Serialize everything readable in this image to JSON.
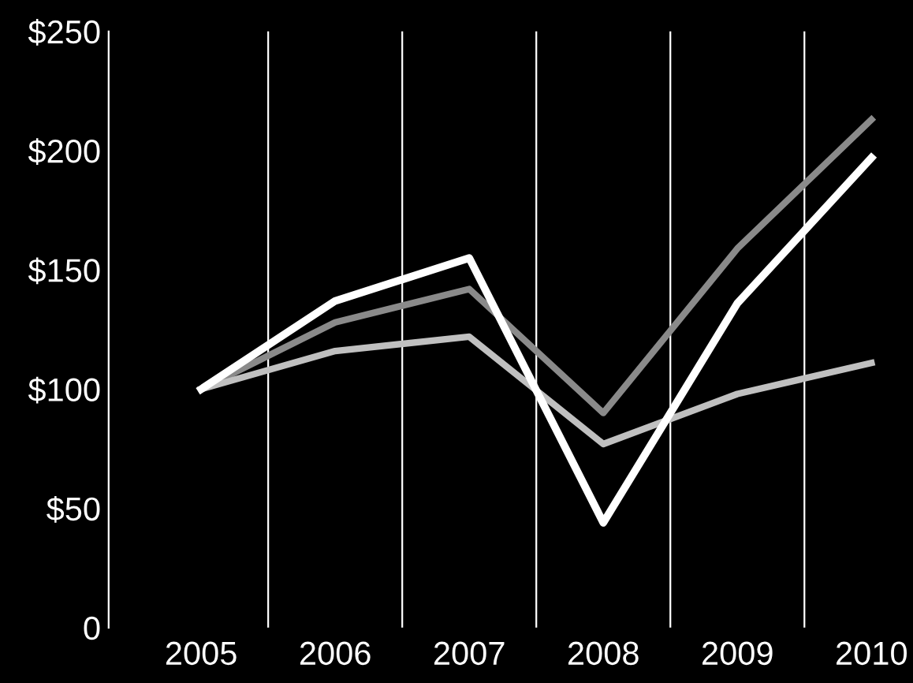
{
  "chart_data": {
    "type": "line",
    "categories": [
      "2005",
      "2006",
      "2007",
      "2008",
      "2009",
      "2010"
    ],
    "series": [
      {
        "color": "#8a8a8a",
        "values": [
          100,
          128,
          142,
          90,
          159,
          213
        ]
      },
      {
        "color": "#c0c0c0",
        "values": [
          100,
          116,
          122,
          77,
          98,
          111
        ]
      },
      {
        "color": "#ffffff",
        "values": [
          100,
          137,
          155,
          44,
          136,
          197
        ]
      }
    ],
    "ylim": [
      0,
      250
    ],
    "yticks": [
      {
        "value": 0,
        "label": "0"
      },
      {
        "value": 50,
        "label": "$50"
      },
      {
        "value": 100,
        "label": "$100"
      },
      {
        "value": 150,
        "label": "$150"
      },
      {
        "value": 200,
        "label": "$200"
      },
      {
        "value": 250,
        "label": "$250"
      }
    ],
    "grid": "x",
    "legend": false,
    "marker": "none",
    "line_style": "solid"
  }
}
